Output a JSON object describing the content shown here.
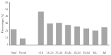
{
  "chart_data": {
    "type": "bar",
    "y_label": "Percentage (%)",
    "categories": [
      "Total",
      "Rural",
      null,
      "<18",
      "18-24",
      "25-34",
      "35-44",
      "45-54",
      "55-64",
      "65+",
      "All"
    ],
    "values": [
      22,
      9,
      null,
      47,
      30,
      31,
      28,
      26,
      23,
      20,
      25
    ],
    "color": "#a6a6a6",
    "ylim": [
      0,
      60
    ],
    "yticks": [
      0,
      10,
      20,
      30,
      40,
      50,
      60
    ],
    "grid": false
  }
}
